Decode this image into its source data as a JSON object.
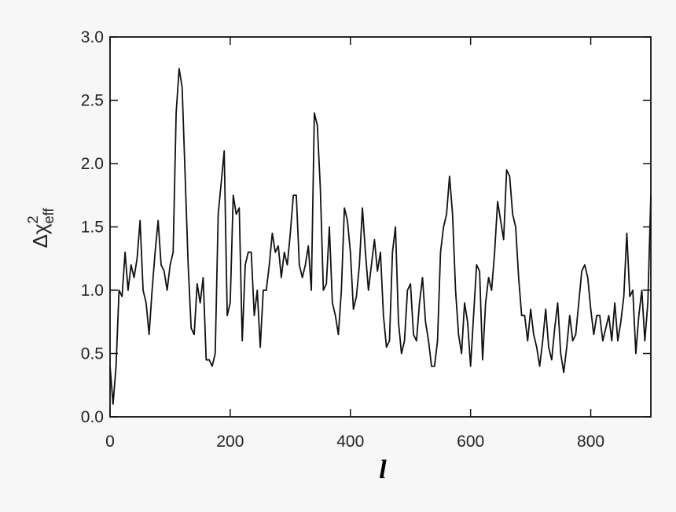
{
  "chart_data": {
    "type": "line",
    "xlabel": "l",
    "ylabel": {
      "base": "Δχ",
      "sup": "2",
      "sub": "eff"
    },
    "xlim": [
      0,
      900
    ],
    "ylim": [
      0,
      3.0
    ],
    "xticks": [
      0,
      200,
      400,
      600,
      800
    ],
    "yticks": [
      {
        "value": 0,
        "label": "0.0"
      },
      {
        "value": 0.5,
        "label": "0.5"
      },
      {
        "value": 1,
        "label": "1.0"
      },
      {
        "value": 1.5,
        "label": "1.5"
      },
      {
        "value": 2,
        "label": "2.0"
      },
      {
        "value": 2.5,
        "label": "2.5"
      },
      {
        "value": 3,
        "label": "3.0"
      }
    ],
    "x": [
      0,
      5,
      10,
      15,
      20,
      25,
      30,
      35,
      40,
      45,
      50,
      55,
      60,
      65,
      70,
      75,
      80,
      85,
      90,
      95,
      100,
      105,
      110,
      115,
      120,
      125,
      130,
      135,
      140,
      145,
      150,
      155,
      160,
      165,
      170,
      175,
      180,
      185,
      190,
      195,
      200,
      205,
      210,
      215,
      220,
      225,
      230,
      235,
      240,
      245,
      250,
      255,
      260,
      265,
      270,
      275,
      280,
      285,
      290,
      295,
      300,
      305,
      310,
      315,
      320,
      325,
      330,
      335,
      340,
      345,
      350,
      355,
      360,
      365,
      370,
      375,
      380,
      385,
      390,
      395,
      400,
      405,
      410,
      415,
      420,
      425,
      430,
      435,
      440,
      445,
      450,
      455,
      460,
      465,
      470,
      475,
      480,
      485,
      490,
      495,
      500,
      505,
      510,
      515,
      520,
      525,
      530,
      535,
      540,
      545,
      550,
      555,
      560,
      565,
      570,
      575,
      580,
      585,
      590,
      595,
      600,
      605,
      610,
      615,
      620,
      625,
      630,
      635,
      640,
      645,
      650,
      655,
      660,
      665,
      670,
      675,
      680,
      685,
      690,
      695,
      700,
      705,
      710,
      715,
      720,
      725,
      730,
      735,
      740,
      745,
      750,
      755,
      760,
      765,
      770,
      775,
      780,
      785,
      790,
      795,
      800,
      805,
      810,
      815,
      820,
      825,
      830,
      835,
      840,
      845,
      850,
      855,
      860,
      865,
      870,
      875,
      880,
      885,
      890,
      895,
      900
    ],
    "series": [
      {
        "name": "delta-chi2",
        "color": "#111111",
        "values": [
          0.4,
          0.1,
          0.4,
          1.0,
          0.95,
          1.3,
          1.0,
          1.2,
          1.1,
          1.25,
          1.55,
          1.0,
          0.9,
          0.65,
          1.0,
          1.3,
          1.55,
          1.2,
          1.15,
          1.0,
          1.2,
          1.3,
          2.4,
          2.75,
          2.6,
          1.9,
          1.2,
          0.7,
          0.65,
          1.05,
          0.9,
          1.1,
          0.45,
          0.45,
          0.4,
          0.5,
          1.6,
          1.85,
          2.1,
          0.8,
          0.9,
          1.75,
          1.6,
          1.65,
          0.6,
          1.2,
          1.3,
          1.3,
          0.8,
          1.0,
          0.55,
          1.0,
          1.0,
          1.2,
          1.45,
          1.3,
          1.35,
          1.1,
          1.3,
          1.2,
          1.45,
          1.75,
          1.75,
          1.2,
          1.1,
          1.2,
          1.35,
          1.0,
          2.4,
          2.3,
          1.8,
          1.0,
          1.05,
          1.5,
          0.9,
          0.8,
          0.65,
          1.0,
          1.65,
          1.55,
          1.3,
          0.85,
          0.95,
          1.2,
          1.65,
          1.3,
          1.0,
          1.2,
          1.4,
          1.15,
          1.3,
          0.8,
          0.55,
          0.6,
          1.3,
          1.5,
          0.75,
          0.5,
          0.6,
          1.0,
          1.05,
          0.65,
          0.6,
          0.9,
          1.1,
          0.75,
          0.6,
          0.4,
          0.4,
          0.6,
          1.3,
          1.5,
          1.6,
          1.9,
          1.6,
          1.0,
          0.65,
          0.5,
          0.9,
          0.75,
          0.4,
          0.8,
          1.2,
          1.15,
          0.45,
          0.9,
          1.1,
          1.0,
          1.3,
          1.7,
          1.55,
          1.4,
          1.95,
          1.9,
          1.6,
          1.5,
          1.1,
          0.8,
          0.8,
          0.6,
          0.85,
          0.65,
          0.55,
          0.4,
          0.6,
          0.85,
          0.55,
          0.45,
          0.7,
          0.9,
          0.5,
          0.35,
          0.55,
          0.8,
          0.6,
          0.65,
          0.9,
          1.15,
          1.2,
          1.1,
          0.85,
          0.65,
          0.8,
          0.8,
          0.6,
          0.7,
          0.8,
          0.6,
          0.9,
          0.6,
          0.75,
          0.95,
          1.45,
          0.95,
          1.0,
          0.5,
          0.8,
          1.0,
          0.6,
          0.9,
          1.75
        ]
      }
    ]
  }
}
